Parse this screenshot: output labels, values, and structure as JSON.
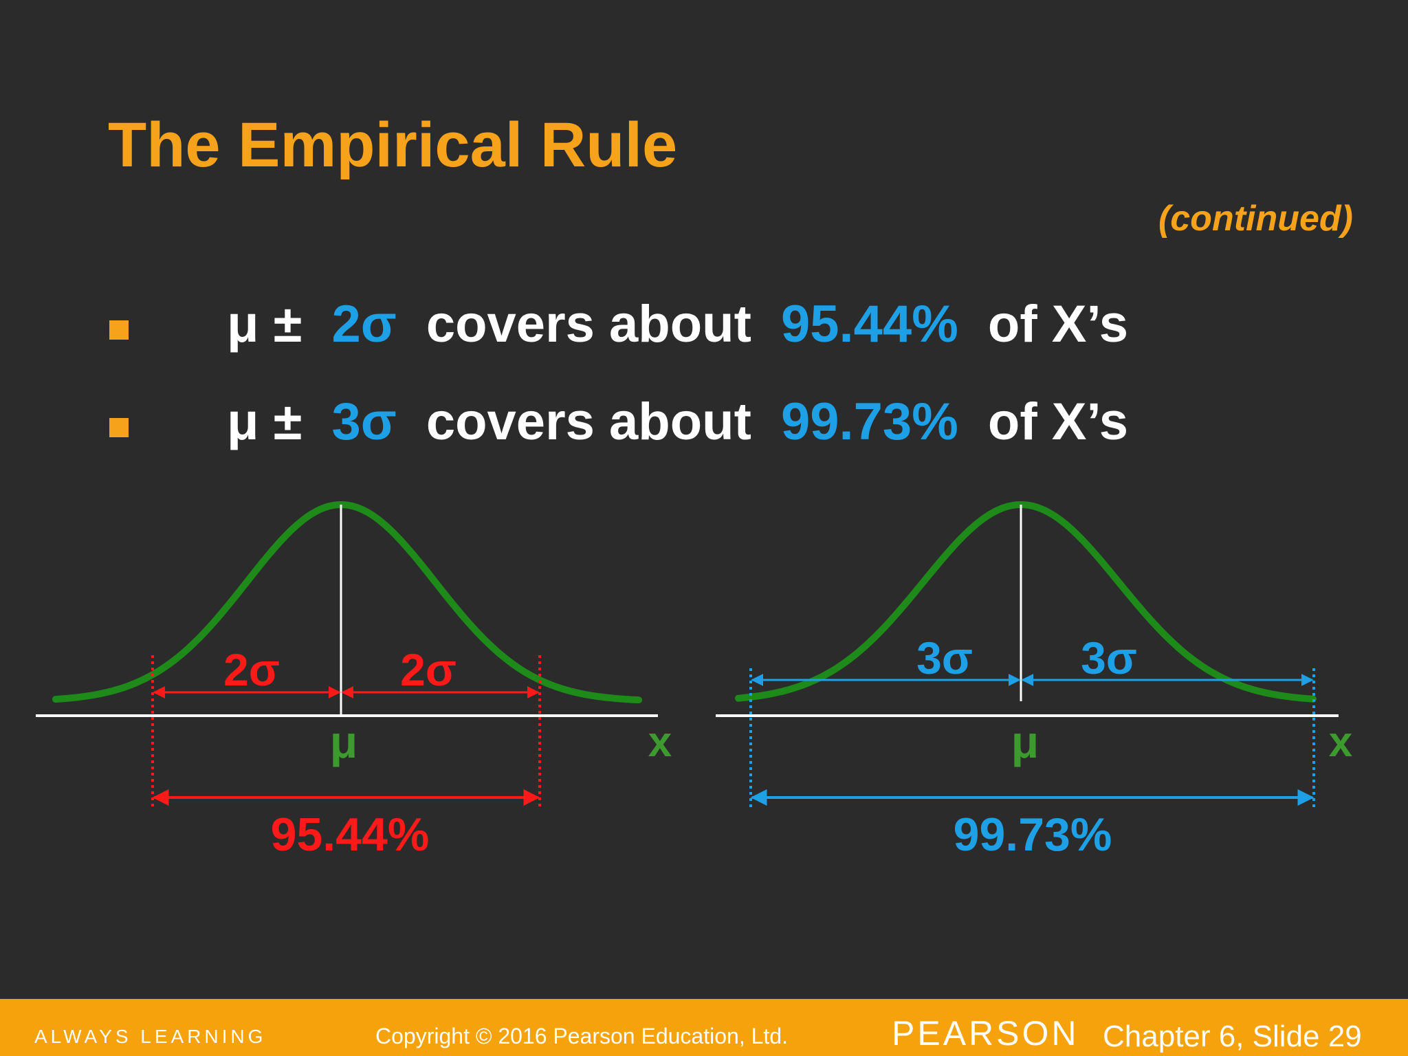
{
  "title": "The Empirical Rule",
  "subtitle": "(continued)",
  "bullets": [
    {
      "lead": "μ ±",
      "sigma": "2σ",
      "middle": "covers about",
      "percent": "95.44%",
      "tail": "of X’s"
    },
    {
      "lead": "μ ±",
      "sigma": "3σ",
      "middle": "covers about",
      "percent": "99.73%",
      "tail": "of X’s"
    }
  ],
  "diagrams": [
    {
      "left_label": "2σ",
      "right_label": "2σ",
      "mean_label": "μ",
      "axis_label": "x",
      "coverage": "95.44%"
    },
    {
      "left_label": "3σ",
      "right_label": "3σ",
      "mean_label": "μ",
      "axis_label": "x",
      "coverage": "99.73%"
    }
  ],
  "footer": {
    "tagline": "ALWAYS LEARNING",
    "copyright": "Copyright © 2016 Pearson Education, Ltd.",
    "brand": "PEARSON",
    "slide": "Chapter 6, Slide 29"
  }
}
